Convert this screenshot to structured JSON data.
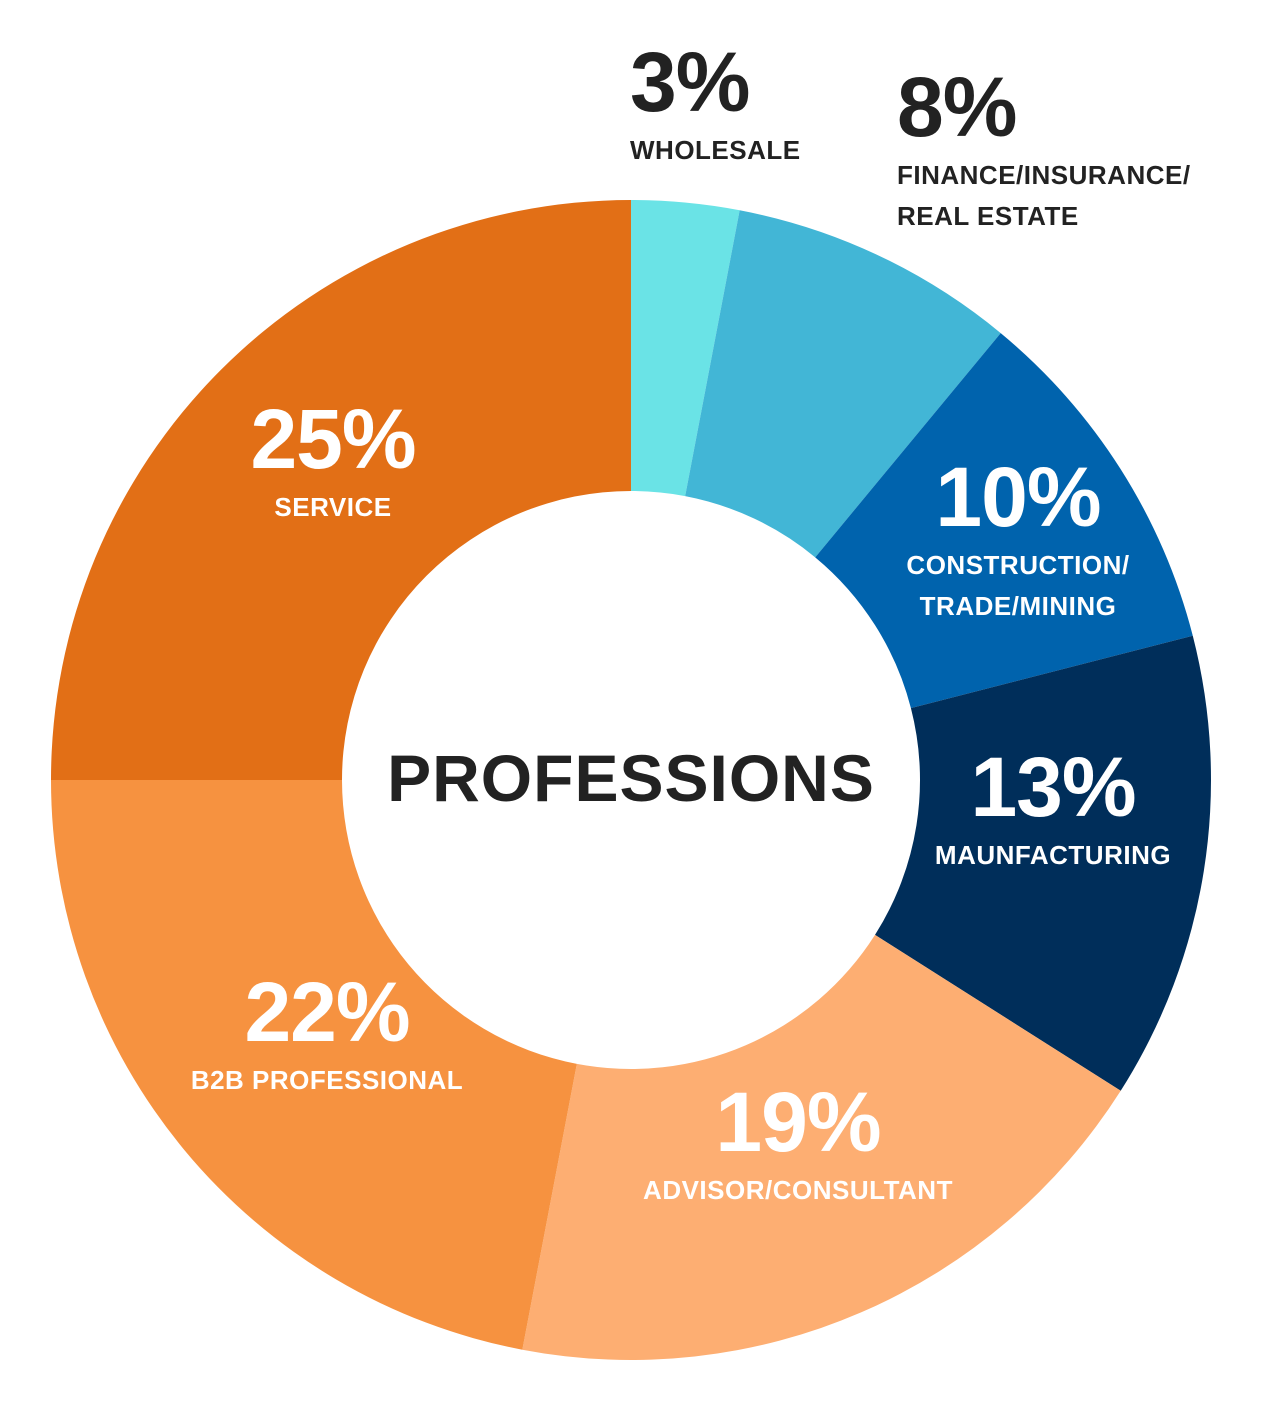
{
  "chart_data": {
    "type": "donut",
    "title": "PROFESSIONS",
    "categories": [
      "WHOLESALE",
      "FINANCE/INSURANCE/\nREAL ESTATE",
      "CONSTRUCTION/\nTRADE/MINING",
      "MAUNFACTURING",
      "ADVISOR/CONSULTANT",
      "B2B PROFESSIONAL",
      "SERVICE"
    ],
    "values": [
      3,
      8,
      10,
      13,
      19,
      22,
      25
    ],
    "value_labels": [
      "3%",
      "8%",
      "10%",
      "13%",
      "19%",
      "22%",
      "25%"
    ],
    "colors": [
      "#6ae3e6",
      "#42b6d6",
      "#0063ad",
      "#002e5a",
      "#fdae72",
      "#f69240",
      "#e26f16"
    ]
  }
}
